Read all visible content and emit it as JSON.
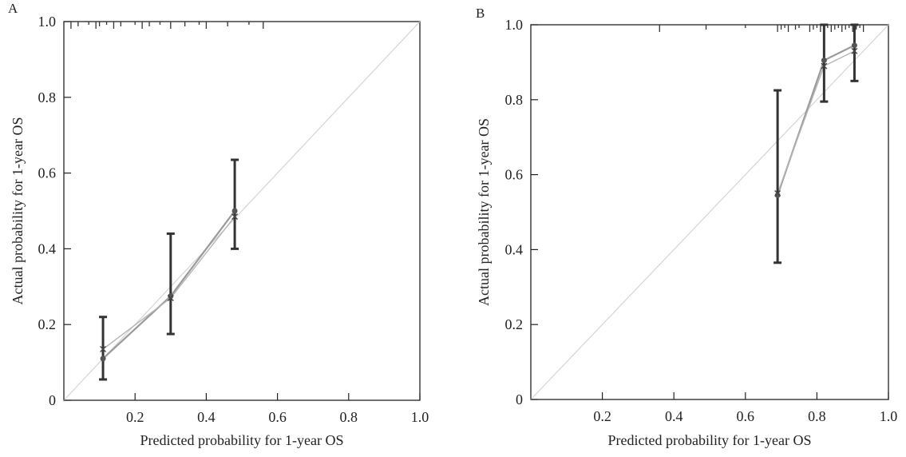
{
  "chart_data": [
    {
      "panel": "A",
      "type": "line",
      "xlabel": "Predicted probability for 1-year OS",
      "ylabel": "Actual probability for 1-year OS",
      "xlim": [
        0,
        1.0
      ],
      "ylim": [
        0,
        1.0
      ],
      "x_ticks": [
        "0.2",
        "0.4",
        "0.6",
        "0.8",
        "1.0"
      ],
      "y_ticks": [
        "0",
        "0.2",
        "0.4",
        "0.6",
        "0.8",
        "1.0"
      ],
      "reference_line": {
        "from": [
          0,
          0
        ],
        "to": [
          1,
          1
        ]
      },
      "observed": [
        {
          "x": 0.11,
          "y": 0.11,
          "lower": 0.055,
          "upper": 0.22
        },
        {
          "x": 0.3,
          "y": 0.275,
          "lower": 0.175,
          "upper": 0.44
        },
        {
          "x": 0.48,
          "y": 0.5,
          "lower": 0.4,
          "upper": 0.635
        }
      ],
      "bias_corrected": [
        {
          "x": 0.11,
          "y": 0.135
        },
        {
          "x": 0.3,
          "y": 0.27
        },
        {
          "x": 0.48,
          "y": 0.485
        }
      ],
      "rug": [
        0.02,
        0.04,
        0.07,
        0.09,
        0.1,
        0.12,
        0.14,
        0.16,
        0.2,
        0.22,
        0.24,
        0.27,
        0.3,
        0.34,
        0.38,
        0.4,
        0.46,
        0.52,
        0.56
      ],
      "grid": false
    },
    {
      "panel": "B",
      "type": "line",
      "xlabel": "Predicted probability for 1-year OS",
      "ylabel": "Actual probability for 1-year OS",
      "xlim": [
        0,
        1.0
      ],
      "ylim": [
        0,
        1.0
      ],
      "x_ticks": [
        "0.2",
        "0.4",
        "0.6",
        "0.8",
        "1.0"
      ],
      "y_ticks": [
        "0",
        "0.2",
        "0.4",
        "0.6",
        "0.8",
        "1.0"
      ],
      "reference_line": {
        "from": [
          0,
          0
        ],
        "to": [
          1,
          1
        ]
      },
      "observed": [
        {
          "x": 0.69,
          "y": 0.545,
          "lower": 0.365,
          "upper": 0.825
        },
        {
          "x": 0.82,
          "y": 0.905,
          "lower": 0.795,
          "upper": 1.0
        },
        {
          "x": 0.905,
          "y": 0.945,
          "lower": 0.85,
          "upper": 1.0
        }
      ],
      "bias_corrected": [
        {
          "x": 0.69,
          "y": 0.55
        },
        {
          "x": 0.82,
          "y": 0.89
        },
        {
          "x": 0.905,
          "y": 0.93
        }
      ],
      "rug": [
        0.36,
        0.49,
        0.6,
        0.69,
        0.7,
        0.71,
        0.72,
        0.74,
        0.75,
        0.78,
        0.79,
        0.8,
        0.81,
        0.82,
        0.83,
        0.84,
        0.85,
        0.86,
        0.87,
        0.88,
        0.89,
        0.9,
        0.91,
        0.92,
        0.93
      ],
      "grid": false
    }
  ]
}
